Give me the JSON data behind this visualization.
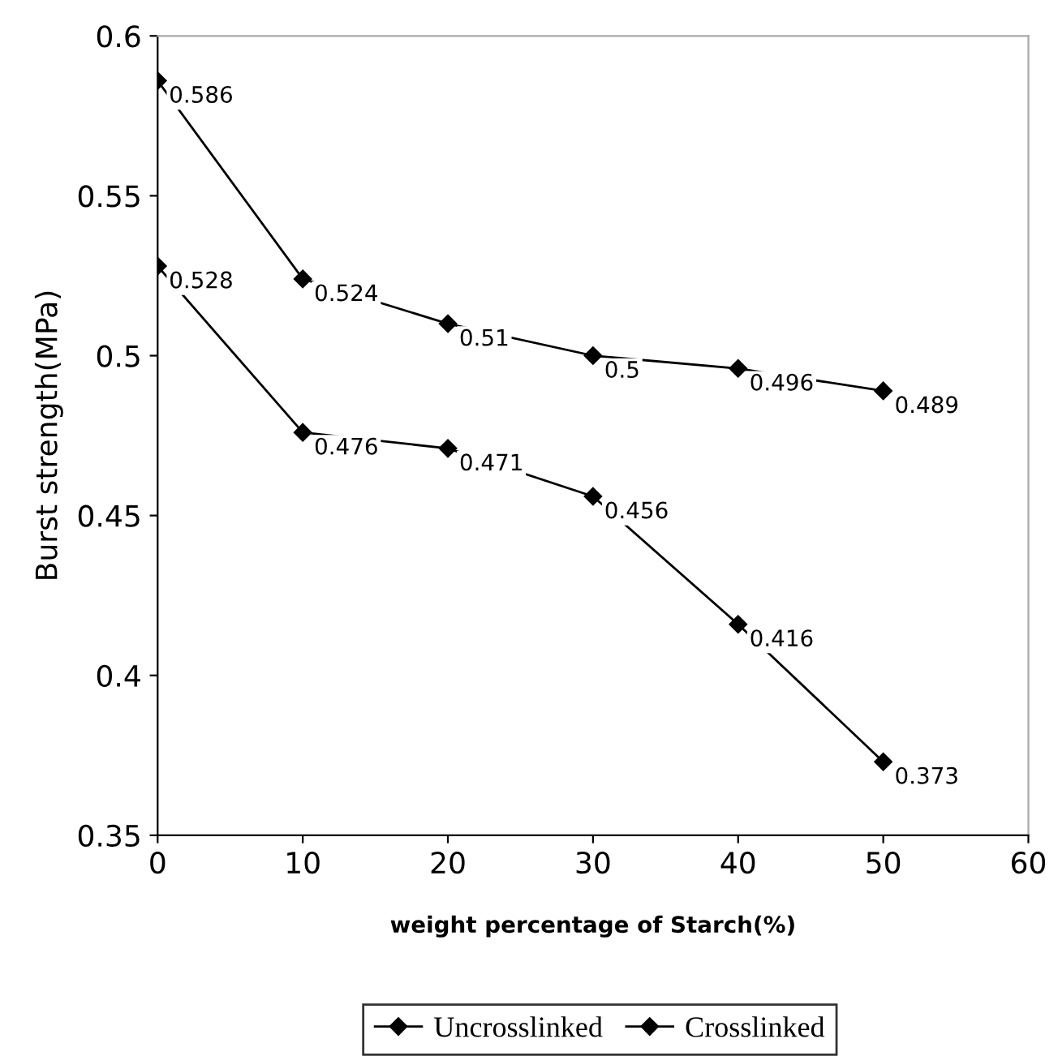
{
  "chart_data": {
    "type": "line",
    "xlabel": "weight percentage of Starch(%)",
    "ylabel": "Burst strength(MPa)",
    "x": [
      0,
      10,
      20,
      30,
      40,
      50
    ],
    "series": [
      {
        "name": "Uncrosslinked",
        "color": "#000000",
        "values": [
          0.528,
          0.476,
          0.471,
          0.456,
          0.416,
          0.373
        ]
      },
      {
        "name": "Crosslinked",
        "color": "#000000",
        "values": [
          0.586,
          0.524,
          0.51,
          0.5,
          0.496,
          0.489
        ]
      }
    ],
    "xlim": [
      0,
      60
    ],
    "xticks": [
      0,
      10,
      20,
      30,
      40,
      50,
      60
    ],
    "ylim": [
      0.35,
      0.6
    ],
    "yticks": [
      0.35,
      0.4,
      0.45,
      0.5,
      0.55,
      0.6
    ],
    "data_labels": true,
    "marker": "diamond",
    "line_style": "solid",
    "grid": false,
    "legend": "bottom"
  }
}
